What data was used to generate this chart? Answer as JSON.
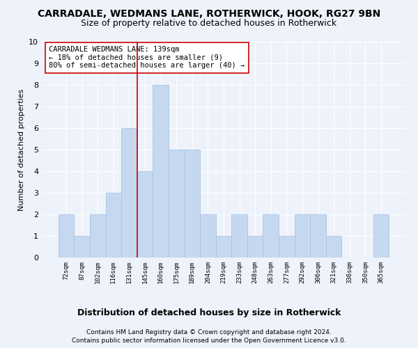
{
  "title": "CARRADALE, WEDMANS LANE, ROTHERWICK, HOOK, RG27 9BN",
  "subtitle": "Size of property relative to detached houses in Rotherwick",
  "xlabel_title": "Distribution of detached houses by size in Rotherwick",
  "ylabel": "Number of detached properties",
  "categories": [
    "72sqm",
    "87sqm",
    "102sqm",
    "116sqm",
    "131sqm",
    "145sqm",
    "160sqm",
    "175sqm",
    "189sqm",
    "204sqm",
    "219sqm",
    "233sqm",
    "248sqm",
    "263sqm",
    "277sqm",
    "292sqm",
    "306sqm",
    "321sqm",
    "336sqm",
    "350sqm",
    "365sqm"
  ],
  "values": [
    2,
    1,
    2,
    3,
    6,
    4,
    8,
    5,
    5,
    2,
    1,
    2,
    1,
    2,
    1,
    2,
    2,
    1,
    0,
    0,
    2
  ],
  "bar_color": "#c5d8f0",
  "bar_edge_color": "#a8c4e0",
  "property_line_x": 4.5,
  "property_line_color": "#cc0000",
  "annotation_text": "CARRADALE WEDMANS LANE: 139sqm\n← 18% of detached houses are smaller (9)\n80% of semi-detached houses are larger (40) →",
  "annotation_box_color": "#ffffff",
  "annotation_box_edge": "#cc0000",
  "ylim": [
    0,
    10
  ],
  "yticks": [
    0,
    1,
    2,
    3,
    4,
    5,
    6,
    7,
    8,
    9,
    10
  ],
  "footer1": "Contains HM Land Registry data © Crown copyright and database right 2024.",
  "footer2": "Contains public sector information licensed under the Open Government Licence v3.0.",
  "background_color": "#eef2fa",
  "grid_color": "#ffffff",
  "title_fontsize": 10,
  "subtitle_fontsize": 9,
  "footer_fontsize": 6.5,
  "xlabel_fontsize": 9,
  "ylabel_fontsize": 8,
  "annot_fontsize": 7.5
}
